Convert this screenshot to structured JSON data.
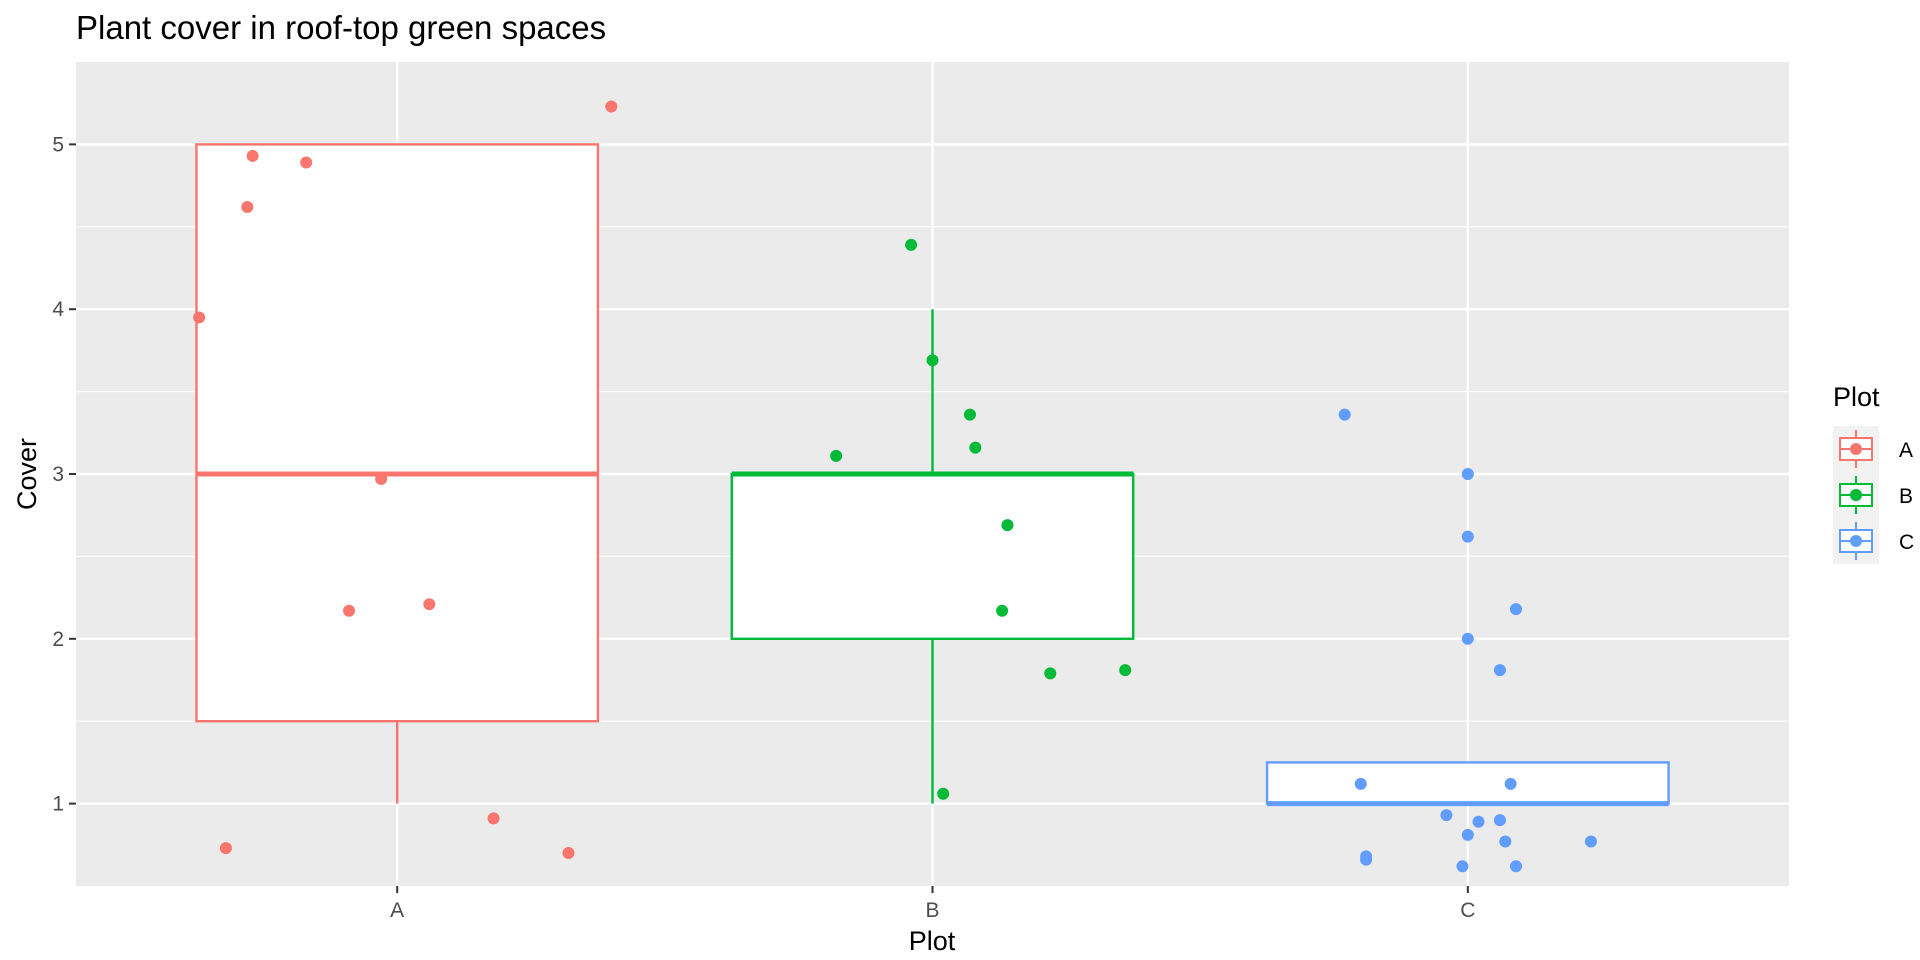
{
  "chart_data": {
    "type": "boxplot",
    "title": "Plant cover in roof-top green spaces",
    "xlabel": "Plot",
    "ylabel": "Cover",
    "categories": [
      "A",
      "B",
      "C"
    ],
    "ylim": [
      0.5,
      5.5
    ],
    "y_ticks": [
      1,
      2,
      3,
      4,
      5
    ],
    "grid": true,
    "legend": {
      "title": "Plot",
      "position": "right"
    },
    "series": [
      {
        "name": "A",
        "color": "#F8766D",
        "box": {
          "min": 1.0,
          "q1": 1.5,
          "median": 3.0,
          "q3": 5.0,
          "max": 5.0
        },
        "points": [
          {
            "x": 0.63,
            "y": 3.95
          },
          {
            "x": 0.68,
            "y": 0.73
          },
          {
            "x": 0.72,
            "y": 4.62
          },
          {
            "x": 0.73,
            "y": 4.93
          },
          {
            "x": 0.83,
            "y": 4.89
          },
          {
            "x": 0.91,
            "y": 2.17
          },
          {
            "x": 0.97,
            "y": 2.97
          },
          {
            "x": 1.06,
            "y": 2.21
          },
          {
            "x": 1.18,
            "y": 0.91
          },
          {
            "x": 1.32,
            "y": 0.7
          },
          {
            "x": 1.4,
            "y": 5.23
          }
        ]
      },
      {
        "name": "B",
        "color": "#00BA38",
        "box": {
          "min": 1.0,
          "q1": 2.0,
          "median": 3.0,
          "q3": 3.0,
          "max": 4.0
        },
        "points": [
          {
            "x": 1.82,
            "y": 3.11
          },
          {
            "x": 1.96,
            "y": 4.39
          },
          {
            "x": 2.0,
            "y": 3.69
          },
          {
            "x": 2.02,
            "y": 1.06
          },
          {
            "x": 2.07,
            "y": 3.36
          },
          {
            "x": 2.08,
            "y": 3.16
          },
          {
            "x": 2.13,
            "y": 2.17
          },
          {
            "x": 2.14,
            "y": 2.69
          },
          {
            "x": 2.22,
            "y": 1.79
          },
          {
            "x": 2.36,
            "y": 1.81
          }
        ]
      },
      {
        "name": "C",
        "color": "#619CFF",
        "box": {
          "min": 1.0,
          "q1": 1.0,
          "median": 1.0,
          "q3": 1.25,
          "max": 1.25
        },
        "points": [
          {
            "x": 2.77,
            "y": 3.36
          },
          {
            "x": 2.8,
            "y": 1.12
          },
          {
            "x": 2.81,
            "y": 0.68
          },
          {
            "x": 2.81,
            "y": 0.66
          },
          {
            "x": 2.96,
            "y": 0.93
          },
          {
            "x": 2.99,
            "y": 0.62
          },
          {
            "x": 3.06,
            "y": 1.81
          },
          {
            "x": 3.06,
            "y": 0.9
          },
          {
            "x": 3.09,
            "y": 2.18
          },
          {
            "x": 3.0,
            "y": 3.0
          },
          {
            "x": 3.0,
            "y": 2.62
          },
          {
            "x": 3.0,
            "y": 2.0
          },
          {
            "x": 3.0,
            "y": 0.81
          },
          {
            "x": 3.02,
            "y": 0.89
          },
          {
            "x": 3.07,
            "y": 0.77
          },
          {
            "x": 3.08,
            "y": 1.12
          },
          {
            "x": 3.09,
            "y": 0.62
          },
          {
            "x": 3.23,
            "y": 0.77
          }
        ]
      }
    ]
  }
}
